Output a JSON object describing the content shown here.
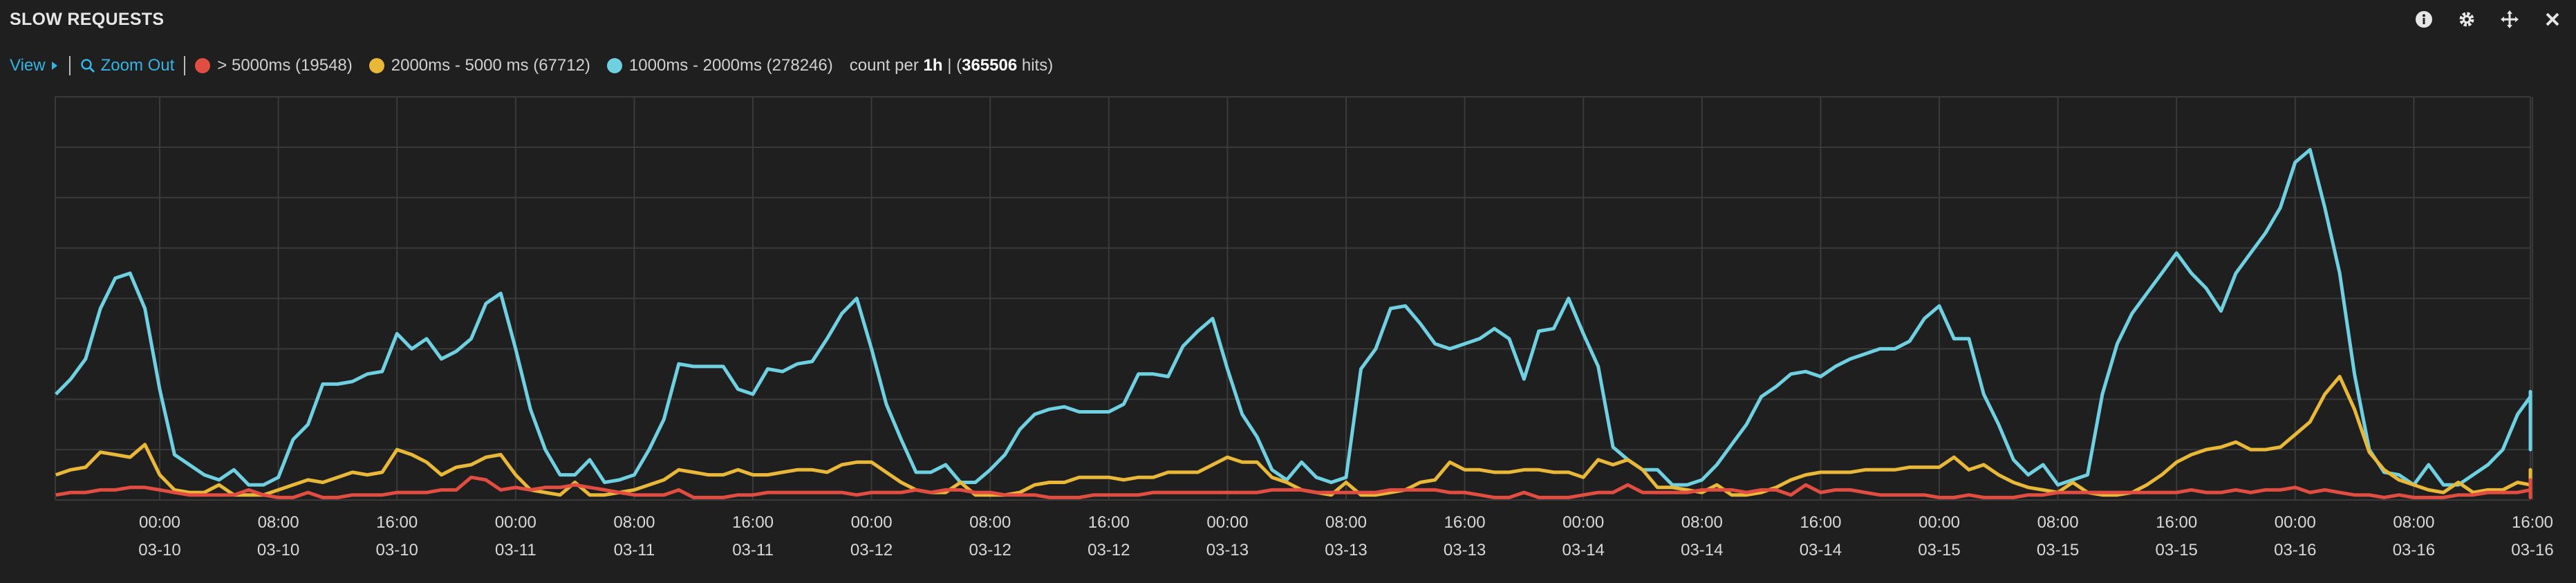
{
  "panel": {
    "title": "SLOW REQUESTS",
    "tools": [
      {
        "name": "info-icon",
        "glyph": "i"
      },
      {
        "name": "gear-icon",
        "glyph": "⚙"
      },
      {
        "name": "move-icon",
        "glyph": "✥"
      },
      {
        "name": "close-icon",
        "glyph": "✕"
      }
    ]
  },
  "toolbar": {
    "view_label": "View",
    "zoom_out_label": "Zoom Out",
    "count_prefix": "count per",
    "interval": "1h",
    "total_hits": "365506",
    "hits_suffix": "hits"
  },
  "colors": {
    "background": "#1f1f1f",
    "grid": "#3a3a3a",
    "accent_link": "#33b5e5",
    "series_red": "#e24d42",
    "series_yellow": "#eab839",
    "series_cyan": "#6ed0e0"
  },
  "chart_data": {
    "type": "line",
    "legend_position": "top-left",
    "grid": true,
    "x_ticks": [
      {
        "time": "00:00",
        "date": "03-10"
      },
      {
        "time": "08:00",
        "date": "03-10"
      },
      {
        "time": "16:00",
        "date": "03-10"
      },
      {
        "time": "00:00",
        "date": "03-11"
      },
      {
        "time": "08:00",
        "date": "03-11"
      },
      {
        "time": "16:00",
        "date": "03-11"
      },
      {
        "time": "00:00",
        "date": "03-12"
      },
      {
        "time": "08:00",
        "date": "03-12"
      },
      {
        "time": "16:00",
        "date": "03-12"
      },
      {
        "time": "00:00",
        "date": "03-13"
      },
      {
        "time": "08:00",
        "date": "03-13"
      },
      {
        "time": "16:00",
        "date": "03-13"
      },
      {
        "time": "00:00",
        "date": "03-14"
      },
      {
        "time": "08:00",
        "date": "03-14"
      },
      {
        "time": "16:00",
        "date": "03-14"
      },
      {
        "time": "00:00",
        "date": "03-15"
      },
      {
        "time": "08:00",
        "date": "03-15"
      },
      {
        "time": "16:00",
        "date": "03-15"
      },
      {
        "time": "00:00",
        "date": "03-16"
      },
      {
        "time": "08:00",
        "date": "03-16"
      },
      {
        "time": "16:00",
        "date": "03-16"
      }
    ],
    "x_hours_start": -7,
    "y_range": [
      0,
      8
    ],
    "series": [
      {
        "label": "> 5000ms (19548)",
        "color": "#e24d42",
        "values": [
          0.1,
          0.15,
          0.15,
          0.2,
          0.2,
          0.25,
          0.25,
          0.2,
          0.15,
          0.1,
          0.1,
          0.1,
          0.1,
          0.2,
          0.1,
          0.05,
          0.05,
          0.15,
          0.05,
          0.05,
          0.1,
          0.1,
          0.1,
          0.15,
          0.15,
          0.15,
          0.2,
          0.2,
          0.45,
          0.4,
          0.2,
          0.25,
          0.2,
          0.25,
          0.25,
          0.3,
          0.25,
          0.2,
          0.15,
          0.1,
          0.1,
          0.1,
          0.2,
          0.05,
          0.05,
          0.05,
          0.1,
          0.1,
          0.15,
          0.15,
          0.15,
          0.15,
          0.15,
          0.15,
          0.1,
          0.15,
          0.15,
          0.15,
          0.2,
          0.15,
          0.2,
          0.2,
          0.15,
          0.15,
          0.1,
          0.1,
          0.1,
          0.05,
          0.05,
          0.05,
          0.1,
          0.1,
          0.1,
          0.1,
          0.15,
          0.15,
          0.15,
          0.15,
          0.15,
          0.15,
          0.15,
          0.15,
          0.2,
          0.2,
          0.2,
          0.15,
          0.15,
          0.15,
          0.15,
          0.15,
          0.2,
          0.2,
          0.2,
          0.2,
          0.15,
          0.15,
          0.1,
          0.05,
          0.05,
          0.15,
          0.05,
          0.05,
          0.05,
          0.1,
          0.15,
          0.15,
          0.3,
          0.15,
          0.15,
          0.15,
          0.15,
          0.2,
          0.2,
          0.2,
          0.15,
          0.2,
          0.2,
          0.1,
          0.3,
          0.15,
          0.2,
          0.2,
          0.15,
          0.1,
          0.1,
          0.1,
          0.1,
          0.05,
          0.05,
          0.1,
          0.05,
          0.05,
          0.05,
          0.1,
          0.1,
          0.15,
          0.15,
          0.15,
          0.15,
          0.15,
          0.15,
          0.15,
          0.15,
          0.15,
          0.2,
          0.15,
          0.15,
          0.2,
          0.15,
          0.2,
          0.2,
          0.25,
          0.15,
          0.2,
          0.15,
          0.1,
          0.1,
          0.05,
          0.1,
          0.05,
          0.05,
          0.05,
          0.1,
          0.1,
          0.15,
          0.15,
          0.15,
          0.2,
          0.2,
          0.15,
          0.2,
          0.2,
          0.2,
          0.25,
          0.2,
          0.3,
          0.25,
          0.4,
          0.15,
          0.2,
          0.2,
          0.3,
          0.3,
          0.3,
          0.25,
          0.2,
          0.15,
          0.1,
          0.1,
          0.05,
          0.05,
          0.05,
          0.1,
          0.05,
          0.1,
          0.15,
          0.15,
          0.15,
          0.2,
          0.35,
          0.1,
          0.15,
          0.15,
          0.15,
          0.15,
          0.15,
          0.1
        ]
      },
      {
        "label": "2000ms - 5000 ms (67712)",
        "color": "#eab839",
        "values": [
          0.5,
          0.6,
          0.65,
          0.95,
          0.9,
          0.85,
          1.1,
          0.5,
          0.2,
          0.15,
          0.15,
          0.3,
          0.1,
          0.1,
          0.1,
          0.2,
          0.3,
          0.4,
          0.35,
          0.45,
          0.55,
          0.5,
          0.55,
          1.0,
          0.9,
          0.75,
          0.5,
          0.65,
          0.7,
          0.85,
          0.9,
          0.5,
          0.2,
          0.15,
          0.1,
          0.35,
          0.1,
          0.1,
          0.15,
          0.2,
          0.3,
          0.4,
          0.6,
          0.55,
          0.5,
          0.5,
          0.6,
          0.5,
          0.5,
          0.55,
          0.6,
          0.6,
          0.55,
          0.7,
          0.75,
          0.75,
          0.55,
          0.35,
          0.2,
          0.15,
          0.15,
          0.35,
          0.1,
          0.1,
          0.1,
          0.15,
          0.3,
          0.35,
          0.35,
          0.45,
          0.45,
          0.45,
          0.4,
          0.45,
          0.45,
          0.55,
          0.55,
          0.55,
          0.7,
          0.85,
          0.75,
          0.75,
          0.45,
          0.35,
          0.2,
          0.15,
          0.1,
          0.35,
          0.1,
          0.1,
          0.15,
          0.2,
          0.35,
          0.4,
          0.75,
          0.6,
          0.6,
          0.55,
          0.55,
          0.6,
          0.6,
          0.55,
          0.55,
          0.45,
          0.8,
          0.7,
          0.8,
          0.6,
          0.25,
          0.25,
          0.2,
          0.15,
          0.3,
          0.1,
          0.1,
          0.15,
          0.25,
          0.4,
          0.5,
          0.55,
          0.55,
          0.55,
          0.6,
          0.6,
          0.6,
          0.65,
          0.65,
          0.65,
          0.85,
          0.6,
          0.7,
          0.5,
          0.35,
          0.25,
          0.2,
          0.15,
          0.35,
          0.15,
          0.1,
          0.1,
          0.15,
          0.3,
          0.5,
          0.75,
          0.9,
          1.0,
          1.05,
          1.15,
          1.0,
          1.0,
          1.05,
          1.3,
          1.55,
          2.1,
          2.45,
          1.8,
          0.95,
          0.6,
          0.4,
          0.3,
          0.2,
          0.15,
          0.35,
          0.15,
          0.2,
          0.2,
          0.35,
          0.3,
          0.45,
          0.5,
          0.6,
          0.35,
          0.45,
          0.45,
          0.5,
          0.45,
          0.35
        ]
      },
      {
        "label": "1000ms - 2000ms (278246)",
        "color": "#6ed0e0",
        "values": [
          2.1,
          2.4,
          2.8,
          3.8,
          4.4,
          4.5,
          3.8,
          2.2,
          0.9,
          0.7,
          0.5,
          0.4,
          0.6,
          0.3,
          0.3,
          0.45,
          1.2,
          1.5,
          2.3,
          2.3,
          2.35,
          2.5,
          2.55,
          3.3,
          3.0,
          3.2,
          2.8,
          2.95,
          3.2,
          3.9,
          4.1,
          3.0,
          1.8,
          1.0,
          0.5,
          0.5,
          0.8,
          0.35,
          0.4,
          0.5,
          1.0,
          1.6,
          2.7,
          2.65,
          2.65,
          2.65,
          2.2,
          2.1,
          2.6,
          2.55,
          2.7,
          2.75,
          3.2,
          3.7,
          4.0,
          3.0,
          1.9,
          1.2,
          0.55,
          0.55,
          0.7,
          0.35,
          0.35,
          0.6,
          0.9,
          1.4,
          1.7,
          1.8,
          1.85,
          1.75,
          1.75,
          1.75,
          1.9,
          2.5,
          2.5,
          2.45,
          3.05,
          3.35,
          3.6,
          2.6,
          1.7,
          1.25,
          0.6,
          0.4,
          0.75,
          0.45,
          0.35,
          0.45,
          2.6,
          3.0,
          3.8,
          3.85,
          3.5,
          3.1,
          3.0,
          3.1,
          3.2,
          3.4,
          3.2,
          2.4,
          3.35,
          3.4,
          4.0,
          3.3,
          2.65,
          1.05,
          0.8,
          0.6,
          0.6,
          0.3,
          0.3,
          0.4,
          0.7,
          1.1,
          1.5,
          2.05,
          2.25,
          2.5,
          2.55,
          2.45,
          2.65,
          2.8,
          2.9,
          3.0,
          3.0,
          3.15,
          3.6,
          3.85,
          3.2,
          3.2,
          2.1,
          1.5,
          0.8,
          0.5,
          0.7,
          0.3,
          0.4,
          0.5,
          2.1,
          3.1,
          3.7,
          4.1,
          4.5,
          4.9,
          4.5,
          4.2,
          3.75,
          4.5,
          4.9,
          5.3,
          5.8,
          6.7,
          6.95,
          5.8,
          4.5,
          2.5,
          1.0,
          0.55,
          0.5,
          0.3,
          0.7,
          0.3,
          0.3,
          0.5,
          0.7,
          1.0,
          1.7,
          2.05,
          2.15,
          1.0,
          1.5,
          1.3,
          1.75,
          1.8,
          1.4
        ]
      }
    ]
  }
}
